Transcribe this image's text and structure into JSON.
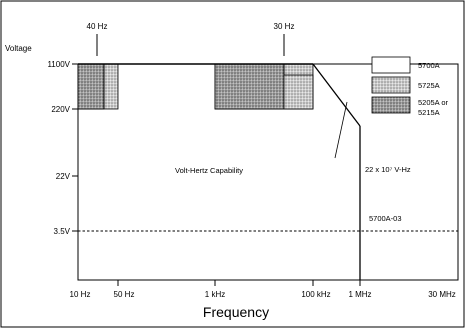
{
  "title": "Volt-Hertz Capability",
  "axes": {
    "x_label": "Frequency",
    "y_label": "Voltage",
    "x_ticks": [
      "10 Hz",
      "50 Hz",
      "1 kHz",
      "100 kHz",
      "1 MHz",
      "30 MHz"
    ],
    "y_ticks": [
      "1100V",
      "220V",
      "22V",
      "3.5V"
    ]
  },
  "top_markers": [
    "40 Hz",
    "30 Hz"
  ],
  "annotations": {
    "vhz_limit": "22 x 10⁷ V-Hz",
    "option_line": "5700A-03"
  },
  "legend": [
    {
      "label": "5700A",
      "fill": "#ffffff"
    },
    {
      "label": "5725A",
      "fill": "#e6e6e6"
    },
    {
      "label_line1": "5205A or",
      "label_line2": "5215A",
      "fill": "#a9a9a9"
    }
  ],
  "colors": {
    "line": "#000000",
    "shade_5725A": "#e6e6e6",
    "shade_5205A": "#a9a9a9"
  },
  "chart_data": {
    "type": "area",
    "title": "Volt-Hertz Capability",
    "xlabel": "Frequency",
    "ylabel": "Voltage",
    "x_scale": "log",
    "y_scale": "log",
    "xlim": [
      "10 Hz",
      "30 MHz"
    ],
    "series": [
      {
        "name": "5700A",
        "points": [
          {
            "x": "10 Hz",
            "y": "1100V"
          },
          {
            "x": "100 kHz",
            "y": "1100V"
          },
          {
            "x": "1 MHz",
            "y": "220V"
          },
          {
            "x": "1 MHz",
            "y": "3.5V"
          },
          {
            "x": "10 Hz",
            "y": "3.5V"
          }
        ]
      },
      {
        "name": "5725A",
        "regions": [
          {
            "x_from": "10 Hz",
            "x_to": "50 Hz",
            "y_from": "220V",
            "y_to": "1100V"
          },
          {
            "x_from": "1 kHz",
            "x_to": "100 kHz",
            "y_from": "220V",
            "y_to": "1100V"
          }
        ]
      },
      {
        "name": "5205A or 5215A",
        "regions": [
          {
            "x_from": "10 Hz",
            "x_to": "40 Hz",
            "y_from": "220V",
            "y_to": "1100V"
          },
          {
            "x_from": "1 kHz",
            "x_to": "30 Hz",
            "y_from": "220V",
            "y_to": "1100V"
          }
        ]
      },
      {
        "name": "5700A-03",
        "points": [
          {
            "x": "10 Hz",
            "y": "3.5V"
          },
          {
            "x": "30 MHz",
            "y": "3.5V"
          }
        ]
      }
    ]
  }
}
